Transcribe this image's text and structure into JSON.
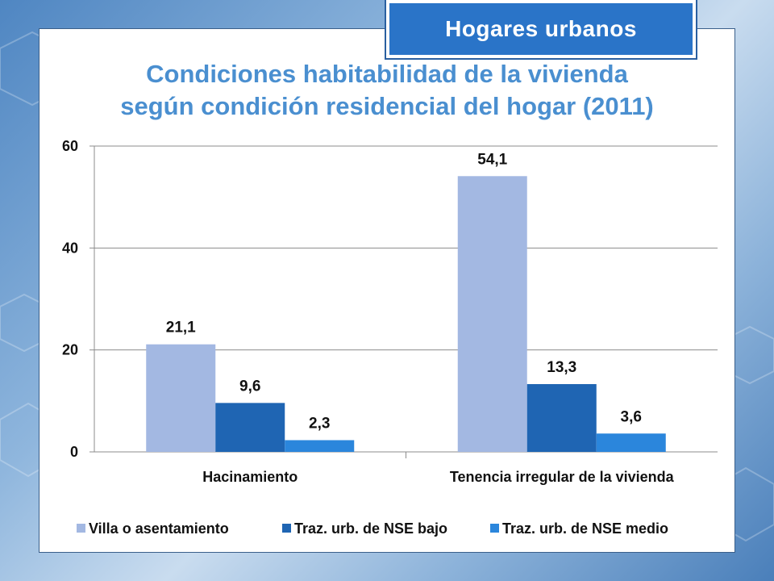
{
  "badge": {
    "label": "Hogares urbanos"
  },
  "chart_data": {
    "type": "bar",
    "title_line1": "Condiciones habitabilidad de la vivienda",
    "title_line2": "según condición residencial del hogar (2011)",
    "categories": [
      "Hacinamiento",
      "Tenencia irregular de la vivienda"
    ],
    "series": [
      {
        "name": "Villa o asentamiento",
        "values": [
          21.1,
          54.1
        ],
        "labels": [
          "21,1",
          "54,1"
        ],
        "color": "#a3b8e2"
      },
      {
        "name": "Traz. urb. de NSE bajo",
        "values": [
          9.6,
          13.3
        ],
        "labels": [
          "9,6",
          "13,3"
        ],
        "color": "#1f65b3"
      },
      {
        "name": "Traz. urb. de NSE medio",
        "values": [
          2.3,
          3.6
        ],
        "labels": [
          "2,3",
          "3,6"
        ],
        "color": "#2b86dc"
      }
    ],
    "yticks": [
      "0",
      "20",
      "40",
      "60"
    ],
    "ylim": [
      0,
      60
    ],
    "grid": true,
    "legend_position": "bottom"
  }
}
